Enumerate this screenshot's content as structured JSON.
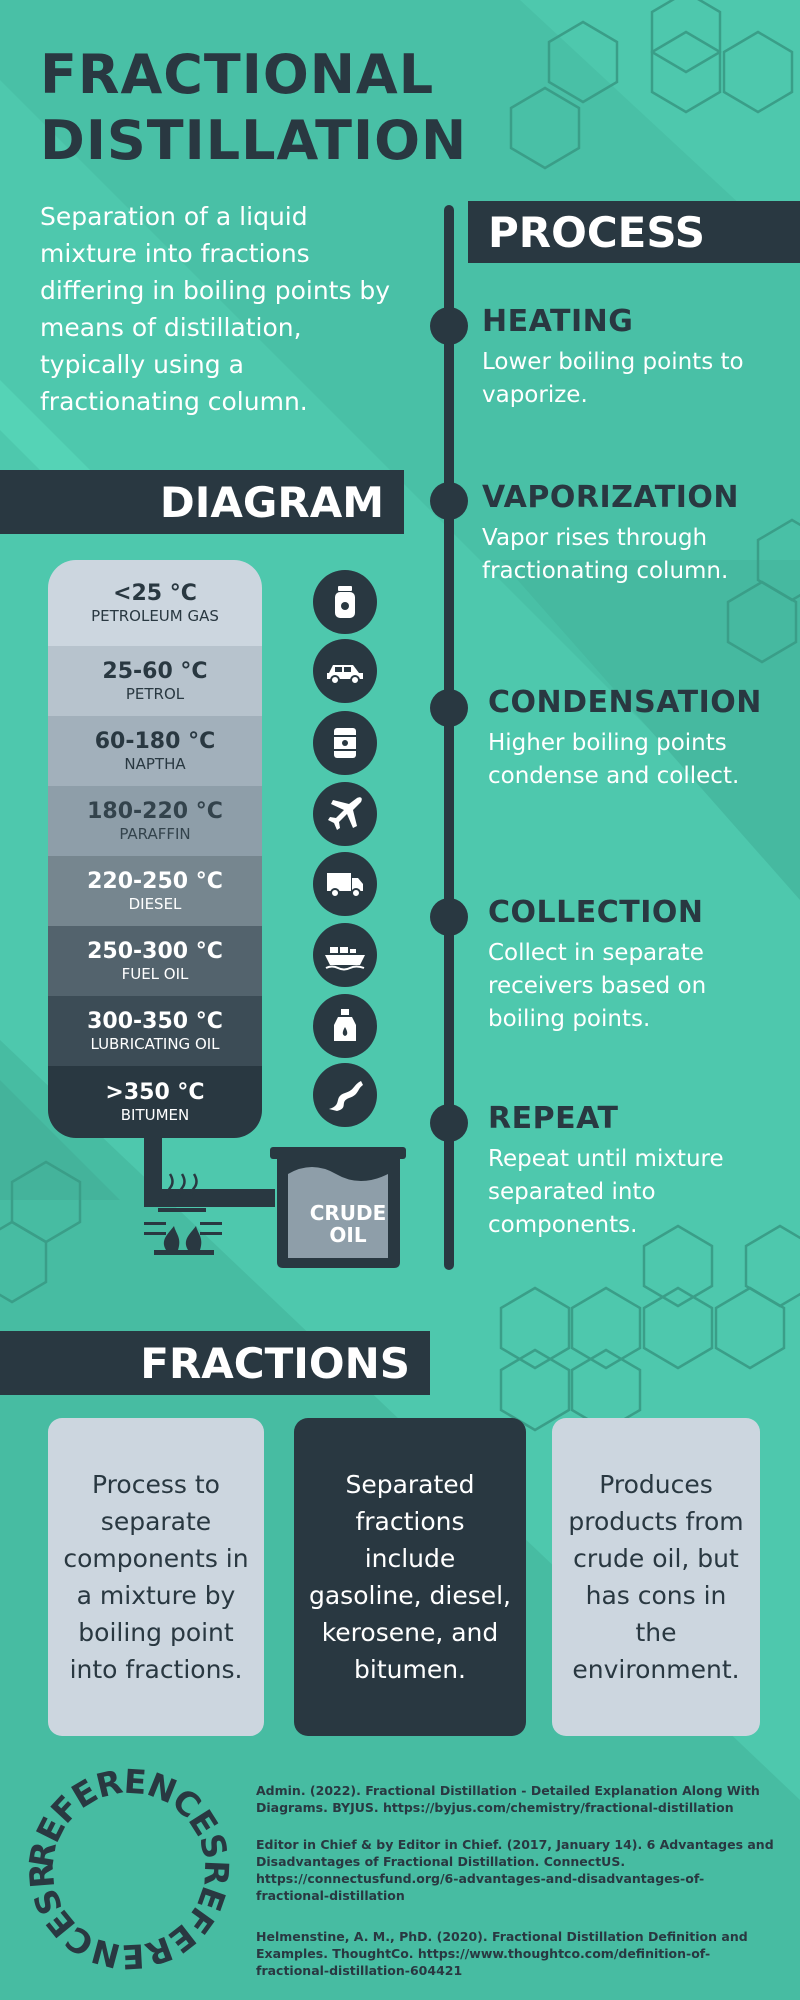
{
  "title": {
    "line1": "FRACTIONAL",
    "line2": "DISTILLATION"
  },
  "intro": "Separation of a liquid mixture into fractions differing in boiling points by means of distillation, typically using a fractionating column.",
  "sections": {
    "process": "PROCESS",
    "diagram": "DIAGRAM",
    "fractions": "FRACTIONS"
  },
  "process_steps": [
    {
      "title": "HEATING",
      "desc": "Lower boiling points to vaporize."
    },
    {
      "title": "VAPORIZATION",
      "desc": "Vapor rises through fractionating column."
    },
    {
      "title": "CONDENSATION",
      "desc": "Higher boiling points condense and collect."
    },
    {
      "title": "COLLECTION",
      "desc": "Collect in separate receivers based on boiling points."
    },
    {
      "title": "REPEAT",
      "desc": "Repeat until mixture separated into components."
    }
  ],
  "column_fractions": [
    {
      "temp": "<25 °C",
      "name": "PETROLEUM GAS",
      "icon": "gas-cylinder-icon"
    },
    {
      "temp": "25-60 °C",
      "name": "PETROL",
      "icon": "car-icon"
    },
    {
      "temp": "60-180 °C",
      "name": "NAPTHA",
      "icon": "barrel-icon"
    },
    {
      "temp": "180-220 °C",
      "name": "PARAFFIN",
      "icon": "airplane-icon"
    },
    {
      "temp": "220-250 °C",
      "name": "DIESEL",
      "icon": "truck-icon"
    },
    {
      "temp": "250-300 °C",
      "name": "FUEL OIL",
      "icon": "ship-icon"
    },
    {
      "temp": "300-350 °C",
      "name": "LUBRICATING OIL",
      "icon": "oil-bottle-icon"
    },
    {
      "temp": ">350 °C",
      "name": "BITUMEN",
      "icon": "road-icon"
    }
  ],
  "crude_oil": {
    "line1": "CRUDE",
    "line2": "OIL"
  },
  "fraction_cards": [
    "Process to separate components in a mixture by boiling point into fractions.",
    "Separated fractions include gasoline, diesel, kerosene, and bitumen.",
    "Produces products from crude oil, but has cons in the environment."
  ],
  "references_title": "REFERENCES",
  "references_ring_text": "REFERENCESREFERENCESREFERENCES",
  "references": [
    "Admin. (2022). Fractional Distillation - Detailed Explanation Along With Diagrams. BYJUS. https://byjus.com/chemistry/fractional-distillation",
    "Editor in Chief & by Editor in Chief. (2017, January 14). 6 Advantages and Disadvantages of Fractional Distillation. ConnectUS. https://connectusfund.org/6-advantages-and-disadvantages-of-fractional-distillation",
    "Helmenstine, A. M., PhD. (2020). Fractional Distillation Definition and Examples. ThoughtCo. https://www.thoughtco.com/definition-of-fractional-distillation-604421"
  ],
  "colors": {
    "background": "#4ec8ad",
    "dark": "#293841",
    "light_card": "#ccd6df",
    "hex_outline": "#3a9e88"
  }
}
